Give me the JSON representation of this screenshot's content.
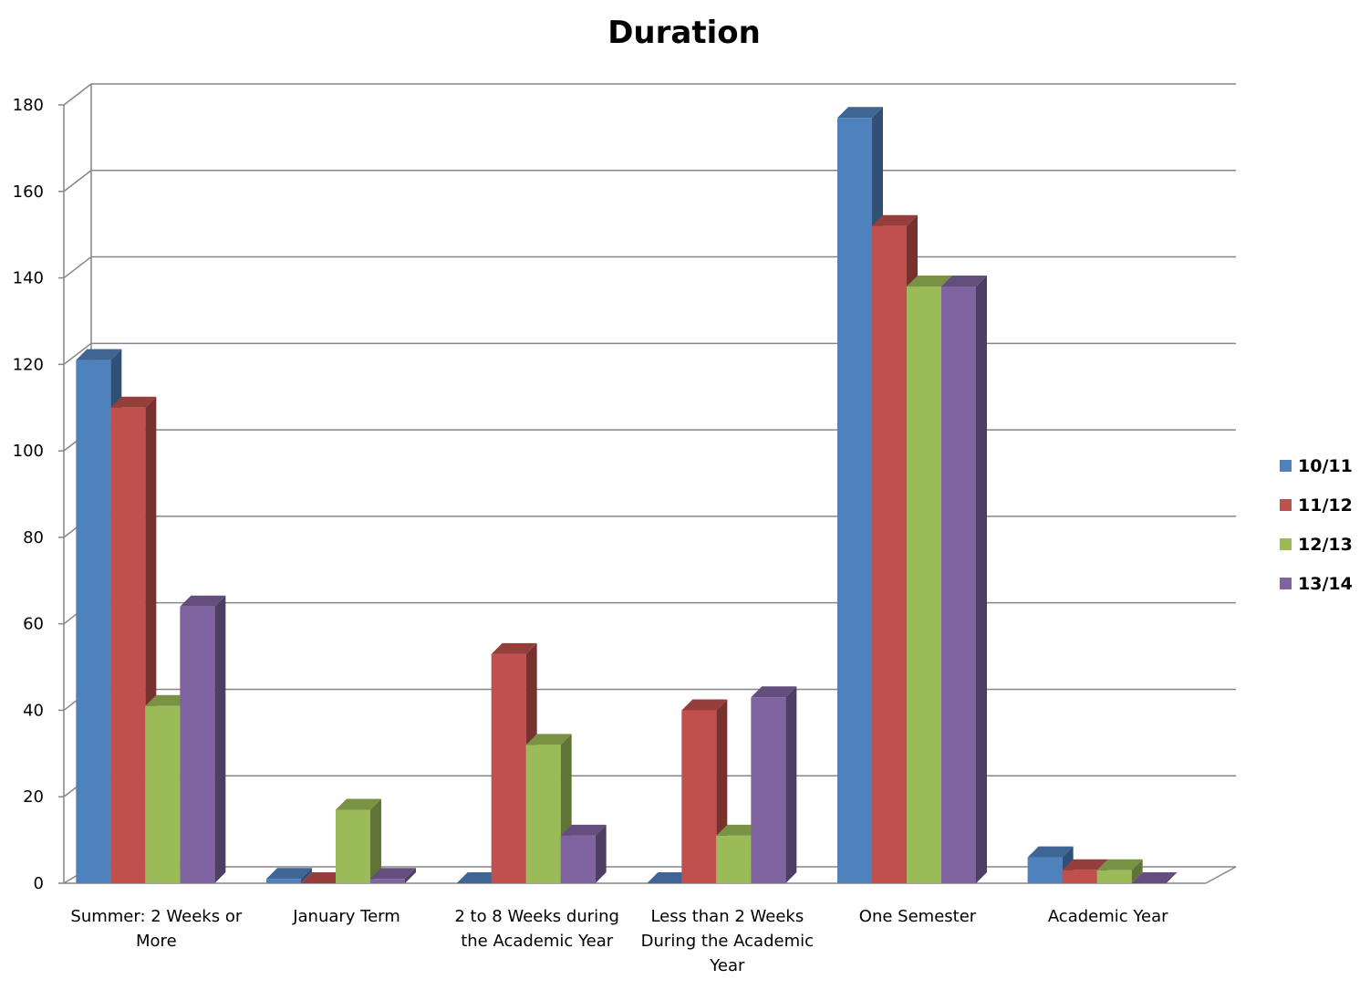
{
  "chart_data": {
    "type": "bar",
    "title": "Duration",
    "xlabel": "",
    "ylabel": "",
    "ylim": [
      0,
      180
    ],
    "yticks": [
      "0",
      "20",
      "40",
      "60",
      "80",
      "100",
      "120",
      "140",
      "160",
      "180"
    ],
    "grid": true,
    "legend": "right",
    "categories": [
      [
        "Summer: 2 Weeks or",
        "More"
      ],
      [
        "January Term"
      ],
      [
        "2 to 8 Weeks during",
        "the Academic Year"
      ],
      [
        "Less than 2 Weeks",
        "During the Academic",
        "Year"
      ],
      [
        "One Semester"
      ],
      [
        "Academic Year"
      ]
    ],
    "series": [
      {
        "name": "10/11",
        "color": "#4F81BD",
        "values": [
          121,
          1,
          0,
          0,
          177,
          6
        ]
      },
      {
        "name": "11/12",
        "color": "#C0504D",
        "values": [
          110,
          0,
          53,
          40,
          152,
          3
        ]
      },
      {
        "name": "12/13",
        "color": "#9BBB59",
        "values": [
          41,
          17,
          32,
          11,
          138,
          3
        ]
      },
      {
        "name": "13/14",
        "color": "#8064A2",
        "values": [
          64,
          1,
          11,
          43,
          138,
          0
        ]
      }
    ]
  }
}
